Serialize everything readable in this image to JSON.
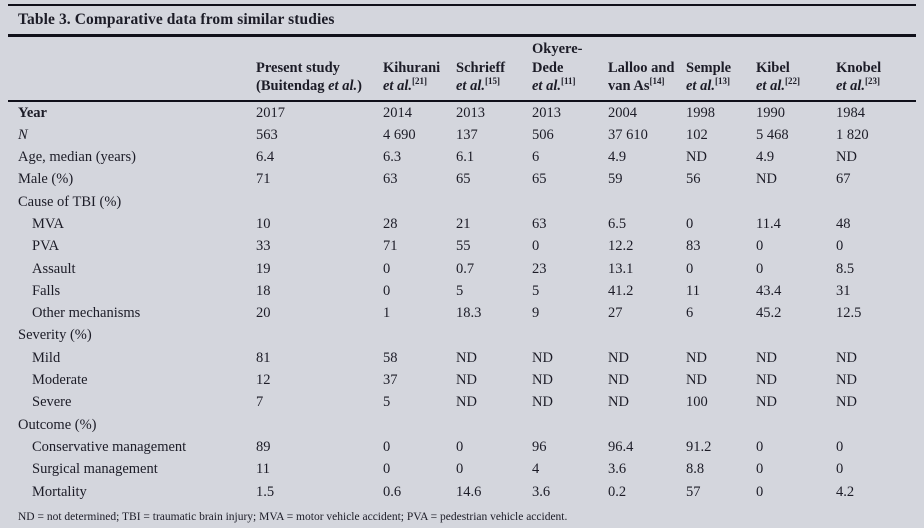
{
  "page": {
    "background": "#d4d6dd",
    "text_color": "#1c1c27",
    "rule_color": "#10101a"
  },
  "title": "Table 3. Comparative data from similar studies",
  "table": {
    "columns": [
      {
        "id": "col-present-study",
        "lines": [
          [
            {
              "t": "Present study"
            }
          ],
          [
            {
              "t": "(Buitendag "
            },
            {
              "t": "et al.",
              "i": 1
            },
            {
              "t": ")"
            }
          ]
        ]
      },
      {
        "id": "col-kihurani",
        "lines": [
          [
            {
              "t": "Kihurani"
            }
          ],
          [
            {
              "t": "et al.",
              "i": 1
            },
            {
              "t": "[21]",
              "s": 1
            }
          ]
        ]
      },
      {
        "id": "col-schrieff",
        "lines": [
          [
            {
              "t": "Schrieff"
            }
          ],
          [
            {
              "t": "et al.",
              "i": 1
            },
            {
              "t": "[15]",
              "s": 1
            }
          ]
        ]
      },
      {
        "id": "col-okyere-dede",
        "lines": [
          [
            {
              "t": "Okyere-"
            }
          ],
          [
            {
              "t": "Dede"
            }
          ],
          [
            {
              "t": "et al.",
              "i": 1
            },
            {
              "t": "[11]",
              "s": 1
            }
          ]
        ]
      },
      {
        "id": "col-lalloo-van-as",
        "lines": [
          [
            {
              "t": "Lalloo and"
            }
          ],
          [
            {
              "t": "van As"
            },
            {
              "t": "[14]",
              "s": 1
            }
          ]
        ]
      },
      {
        "id": "col-semple",
        "lines": [
          [
            {
              "t": "Semple"
            }
          ],
          [
            {
              "t": "et al.",
              "i": 1
            },
            {
              "t": "[13]",
              "s": 1
            }
          ]
        ]
      },
      {
        "id": "col-kibel",
        "lines": [
          [
            {
              "t": "Kibel"
            }
          ],
          [
            {
              "t": "et al.",
              "i": 1
            },
            {
              "t": "[22]",
              "s": 1
            }
          ]
        ]
      },
      {
        "id": "col-knobel",
        "lines": [
          [
            {
              "t": "Knobel"
            }
          ],
          [
            {
              "t": "et al.",
              "i": 1
            },
            {
              "t": "[23]",
              "s": 1
            }
          ]
        ]
      }
    ],
    "rows": [
      {
        "label": "Year",
        "style": "bold",
        "values": [
          "2017",
          "2014",
          "2013",
          "2013",
          "2004",
          "1998",
          "1990",
          "1984"
        ]
      },
      {
        "label": "N",
        "style": "italic",
        "values": [
          "563",
          "4 690",
          "137",
          "506",
          "37 610",
          "102",
          "5 468",
          "1 820"
        ]
      },
      {
        "label": "Age, median (years)",
        "style": "plain",
        "values": [
          "6.4",
          "6.3",
          "6.1",
          "6",
          "4.9",
          "ND",
          "4.9",
          "ND"
        ]
      },
      {
        "label": "Male (%)",
        "style": "plain",
        "values": [
          "71",
          "63",
          "65",
          "65",
          "59",
          "56",
          "ND",
          "67"
        ]
      },
      {
        "label": "Cause of TBI (%)",
        "style": "plain",
        "values": [
          "",
          "",
          "",
          "",
          "",
          "",
          "",
          ""
        ]
      },
      {
        "label": "MVA",
        "style": "indent",
        "values": [
          "10",
          "28",
          "21",
          "63",
          "6.5",
          "0",
          "11.4",
          "48"
        ]
      },
      {
        "label": "PVA",
        "style": "indent",
        "values": [
          "33",
          "71",
          "55",
          "0",
          "12.2",
          "83",
          "0",
          "0"
        ]
      },
      {
        "label": "Assault",
        "style": "indent",
        "values": [
          "19",
          "0",
          "0.7",
          "23",
          "13.1",
          "0",
          "0",
          "8.5"
        ]
      },
      {
        "label": "Falls",
        "style": "indent",
        "values": [
          "18",
          "0",
          "5",
          "5",
          "41.2",
          "11",
          "43.4",
          "31"
        ]
      },
      {
        "label": "Other mechanisms",
        "style": "indent",
        "values": [
          "20",
          "1",
          "18.3",
          "9",
          "27",
          "6",
          "45.2",
          "12.5"
        ]
      },
      {
        "label": "Severity (%)",
        "style": "plain",
        "values": [
          "",
          "",
          "",
          "",
          "",
          "",
          "",
          ""
        ]
      },
      {
        "label": "Mild",
        "style": "indent",
        "values": [
          "81",
          "58",
          "ND",
          "ND",
          "ND",
          "ND",
          "ND",
          "ND"
        ]
      },
      {
        "label": "Moderate",
        "style": "indent",
        "values": [
          "12",
          "37",
          "ND",
          "ND",
          "ND",
          "ND",
          "ND",
          "ND"
        ]
      },
      {
        "label": "Severe",
        "style": "indent",
        "values": [
          "7",
          "5",
          "ND",
          "ND",
          "ND",
          "100",
          "ND",
          "ND"
        ]
      },
      {
        "label": "Outcome (%)",
        "style": "plain",
        "values": [
          "",
          "",
          "",
          "",
          "",
          "",
          "",
          ""
        ]
      },
      {
        "label": "Conservative management",
        "style": "indent",
        "values": [
          "89",
          "0",
          "0",
          "96",
          "96.4",
          "91.2",
          "0",
          "0"
        ]
      },
      {
        "label": "Surgical management",
        "style": "indent",
        "values": [
          "11",
          "0",
          "0",
          "4",
          "3.6",
          "8.8",
          "0",
          "0"
        ]
      },
      {
        "label": "Mortality",
        "style": "indent",
        "values": [
          "1.5",
          "0.6",
          "14.6",
          "3.6",
          "0.2",
          "57",
          "0",
          "4.2"
        ]
      }
    ]
  },
  "footnote": "ND = not determined; TBI = traumatic brain injury; MVA = motor vehicle accident; PVA = pedestrian vehicle accident."
}
